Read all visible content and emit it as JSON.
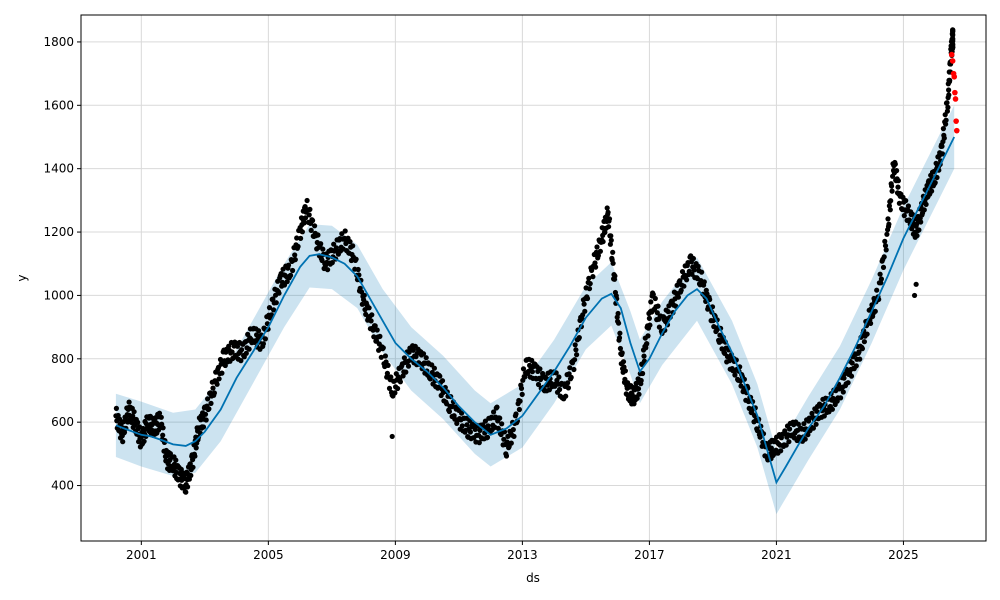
{
  "chart_data": {
    "type": "line",
    "title": "",
    "xlabel": "ds",
    "ylabel": "y",
    "xlim": [
      1999.1,
      2027.6
    ],
    "ylim": [
      225,
      1885
    ],
    "x_ticks": [
      2001,
      2005,
      2009,
      2013,
      2017,
      2021,
      2025
    ],
    "x_tick_labels": [
      "2001",
      "2005",
      "2009",
      "2013",
      "2017",
      "2021",
      "2025"
    ],
    "y_ticks": [
      400,
      600,
      800,
      1000,
      1200,
      1400,
      1600,
      1800
    ],
    "grid": true,
    "legend": "none",
    "series": [
      {
        "kind": "forecast",
        "color": "#0072B2",
        "points": [
          [
            2000.2,
            590
          ],
          [
            2000.6,
            575
          ],
          [
            2001.0,
            560
          ],
          [
            2001.3,
            555
          ],
          [
            2001.6,
            545
          ],
          [
            2002.0,
            530
          ],
          [
            2002.4,
            525
          ],
          [
            2002.7,
            540
          ],
          [
            2003.0,
            570
          ],
          [
            2003.5,
            640
          ],
          [
            2004.0,
            740
          ],
          [
            2004.5,
            820
          ],
          [
            2005.0,
            900
          ],
          [
            2005.5,
            1000
          ],
          [
            2006.0,
            1090
          ],
          [
            2006.3,
            1125
          ],
          [
            2006.6,
            1130
          ],
          [
            2007.0,
            1120
          ],
          [
            2007.4,
            1100
          ],
          [
            2007.8,
            1060
          ],
          [
            2008.2,
            990
          ],
          [
            2008.6,
            920
          ],
          [
            2009.0,
            850
          ],
          [
            2009.5,
            800
          ],
          [
            2010.0,
            760
          ],
          [
            2010.5,
            710
          ],
          [
            2011.0,
            650
          ],
          [
            2011.5,
            600
          ],
          [
            2012.0,
            560
          ],
          [
            2012.5,
            580
          ],
          [
            2013.0,
            620
          ],
          [
            2013.5,
            690
          ],
          [
            2014.0,
            760
          ],
          [
            2014.5,
            840
          ],
          [
            2015.0,
            930
          ],
          [
            2015.5,
            990
          ],
          [
            2015.8,
            1005
          ],
          [
            2016.1,
            960
          ],
          [
            2016.4,
            850
          ],
          [
            2016.7,
            760
          ],
          [
            2017.0,
            800
          ],
          [
            2017.4,
            880
          ],
          [
            2017.8,
            950
          ],
          [
            2018.2,
            1000
          ],
          [
            2018.5,
            1020
          ],
          [
            2018.8,
            990
          ],
          [
            2019.2,
            900
          ],
          [
            2019.6,
            820
          ],
          [
            2020.0,
            720
          ],
          [
            2020.4,
            620
          ],
          [
            2020.8,
            480
          ],
          [
            2021.0,
            410
          ],
          [
            2021.3,
            460
          ],
          [
            2021.7,
            530
          ],
          [
            2022.0,
            580
          ],
          [
            2022.5,
            650
          ],
          [
            2023.0,
            740
          ],
          [
            2023.5,
            840
          ],
          [
            2024.0,
            950
          ],
          [
            2024.5,
            1060
          ],
          [
            2025.0,
            1180
          ],
          [
            2025.5,
            1280
          ],
          [
            2026.0,
            1380
          ],
          [
            2026.4,
            1460
          ],
          [
            2026.6,
            1500
          ]
        ],
        "upper": [
          [
            2000.2,
            690
          ],
          [
            2001.0,
            665
          ],
          [
            2002.0,
            630
          ],
          [
            2002.7,
            640
          ],
          [
            2003.5,
            740
          ],
          [
            2004.5,
            920
          ],
          [
            2005.5,
            1100
          ],
          [
            2006.3,
            1225
          ],
          [
            2007.0,
            1220
          ],
          [
            2007.8,
            1160
          ],
          [
            2008.6,
            1020
          ],
          [
            2009.5,
            900
          ],
          [
            2010.5,
            810
          ],
          [
            2011.5,
            700
          ],
          [
            2012.0,
            660
          ],
          [
            2013.0,
            720
          ],
          [
            2014.0,
            860
          ],
          [
            2015.0,
            1030
          ],
          [
            2015.8,
            1105
          ],
          [
            2016.4,
            950
          ],
          [
            2016.7,
            860
          ],
          [
            2017.4,
            980
          ],
          [
            2018.5,
            1120
          ],
          [
            2019.6,
            920
          ],
          [
            2020.4,
            720
          ],
          [
            2021.0,
            510
          ],
          [
            2022.0,
            680
          ],
          [
            2023.0,
            840
          ],
          [
            2024.0,
            1050
          ],
          [
            2025.0,
            1280
          ],
          [
            2026.0,
            1480
          ],
          [
            2026.6,
            1600
          ]
        ],
        "lower": [
          [
            2000.2,
            490
          ],
          [
            2001.0,
            460
          ],
          [
            2002.0,
            430
          ],
          [
            2002.7,
            440
          ],
          [
            2003.5,
            540
          ],
          [
            2004.5,
            720
          ],
          [
            2005.5,
            900
          ],
          [
            2006.3,
            1025
          ],
          [
            2007.0,
            1020
          ],
          [
            2007.8,
            960
          ],
          [
            2008.6,
            820
          ],
          [
            2009.5,
            700
          ],
          [
            2010.5,
            610
          ],
          [
            2011.5,
            500
          ],
          [
            2012.0,
            460
          ],
          [
            2013.0,
            520
          ],
          [
            2014.0,
            660
          ],
          [
            2015.0,
            830
          ],
          [
            2015.8,
            905
          ],
          [
            2016.4,
            750
          ],
          [
            2016.7,
            660
          ],
          [
            2017.4,
            780
          ],
          [
            2018.5,
            920
          ],
          [
            2019.6,
            720
          ],
          [
            2020.4,
            520
          ],
          [
            2021.0,
            310
          ],
          [
            2022.0,
            480
          ],
          [
            2023.0,
            640
          ],
          [
            2024.0,
            850
          ],
          [
            2025.0,
            1080
          ],
          [
            2026.0,
            1280
          ],
          [
            2026.6,
            1400
          ]
        ]
      },
      {
        "kind": "observed",
        "color": "#000000",
        "points": [
          [
            2000.2,
            620
          ],
          [
            2000.4,
            560
          ],
          [
            2000.6,
            640
          ],
          [
            2000.8,
            600
          ],
          [
            2001.0,
            540
          ],
          [
            2001.2,
            600
          ],
          [
            2001.4,
            580
          ],
          [
            2001.6,
            610
          ],
          [
            2001.8,
            480
          ],
          [
            2002.0,
            470
          ],
          [
            2002.2,
            430
          ],
          [
            2002.4,
            405
          ],
          [
            2002.6,
            470
          ],
          [
            2002.8,
            580
          ],
          [
            2003.0,
            620
          ],
          [
            2003.3,
            720
          ],
          [
            2003.6,
            800
          ],
          [
            2003.9,
            830
          ],
          [
            2004.2,
            820
          ],
          [
            2004.5,
            880
          ],
          [
            2004.8,
            850
          ],
          [
            2005.1,
            960
          ],
          [
            2005.4,
            1050
          ],
          [
            2005.7,
            1080
          ],
          [
            2006.0,
            1200
          ],
          [
            2006.2,
            1280
          ],
          [
            2006.5,
            1180
          ],
          [
            2006.8,
            1100
          ],
          [
            2007.1,
            1140
          ],
          [
            2007.4,
            1180
          ],
          [
            2007.7,
            1120
          ],
          [
            2008.0,
            980
          ],
          [
            2008.3,
            900
          ],
          [
            2008.6,
            820
          ],
          [
            2008.9,
            700
          ],
          [
            2009.2,
            760
          ],
          [
            2009.5,
            820
          ],
          [
            2009.8,
            800
          ],
          [
            2010.1,
            760
          ],
          [
            2010.4,
            720
          ],
          [
            2010.7,
            660
          ],
          [
            2011.0,
            610
          ],
          [
            2011.3,
            580
          ],
          [
            2011.6,
            560
          ],
          [
            2011.9,
            580
          ],
          [
            2012.2,
            620
          ],
          [
            2012.5,
            520
          ],
          [
            2012.8,
            600
          ],
          [
            2013.1,
            780
          ],
          [
            2013.4,
            760
          ],
          [
            2013.7,
            720
          ],
          [
            2014.0,
            740
          ],
          [
            2014.3,
            690
          ],
          [
            2014.6,
            780
          ],
          [
            2014.9,
            950
          ],
          [
            2015.2,
            1080
          ],
          [
            2015.5,
            1180
          ],
          [
            2015.7,
            1260
          ],
          [
            2015.9,
            1050
          ],
          [
            2016.1,
            820
          ],
          [
            2016.3,
            700
          ],
          [
            2016.5,
            680
          ],
          [
            2016.7,
            720
          ],
          [
            2016.9,
            860
          ],
          [
            2017.1,
            990
          ],
          [
            2017.4,
            900
          ],
          [
            2017.7,
            960
          ],
          [
            2018.0,
            1040
          ],
          [
            2018.3,
            1100
          ],
          [
            2018.6,
            1060
          ],
          [
            2018.9,
            960
          ],
          [
            2019.2,
            880
          ],
          [
            2019.5,
            800
          ],
          [
            2019.8,
            760
          ],
          [
            2020.1,
            680
          ],
          [
            2020.4,
            600
          ],
          [
            2020.7,
            500
          ],
          [
            2020.9,
            520
          ],
          [
            2021.2,
            540
          ],
          [
            2021.5,
            580
          ],
          [
            2021.8,
            560
          ],
          [
            2022.1,
            600
          ],
          [
            2022.4,
            640
          ],
          [
            2022.7,
            660
          ],
          [
            2023.0,
            700
          ],
          [
            2023.3,
            760
          ],
          [
            2023.6,
            820
          ],
          [
            2023.9,
            920
          ],
          [
            2024.2,
            1000
          ],
          [
            2024.5,
            1200
          ],
          [
            2024.7,
            1420
          ],
          [
            2024.9,
            1300
          ],
          [
            2025.2,
            1250
          ],
          [
            2025.4,
            1200
          ],
          [
            2025.6,
            1280
          ],
          [
            2025.8,
            1340
          ],
          [
            2026.0,
            1380
          ],
          [
            2026.2,
            1450
          ],
          [
            2026.4,
            1620
          ],
          [
            2026.5,
            1760
          ],
          [
            2026.55,
            1810
          ]
        ],
        "outliers": [
          [
            2008.9,
            555
          ],
          [
            2025.35,
            1000
          ],
          [
            2025.4,
            1035
          ]
        ]
      },
      {
        "kind": "highlighted",
        "color": "#FF0000",
        "points": [
          [
            2026.52,
            1760
          ],
          [
            2026.55,
            1740
          ],
          [
            2026.58,
            1700
          ],
          [
            2026.6,
            1690
          ],
          [
            2026.62,
            1640
          ],
          [
            2026.64,
            1620
          ],
          [
            2026.66,
            1550
          ],
          [
            2026.68,
            1520
          ]
        ]
      }
    ]
  }
}
